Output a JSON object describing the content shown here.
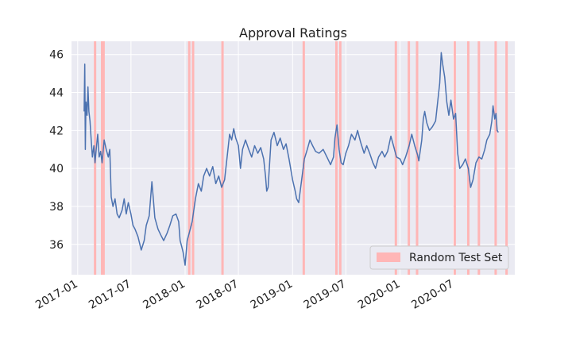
{
  "chart_data": {
    "type": "line",
    "title": "Approval Ratings",
    "xlabel": "",
    "ylabel": "",
    "x_type": "date",
    "xlim": [
      "2016-12-11",
      "2021-01-25"
    ],
    "ylim": [
      34.4,
      46.7
    ],
    "grid": true,
    "x_ticks": [
      "2017-01",
      "2017-07",
      "2018-01",
      "2018-07",
      "2019-01",
      "2019-07",
      "2020-01",
      "2020-07"
    ],
    "x_tick_dates": [
      "2017-01-01",
      "2017-07-01",
      "2018-01-01",
      "2018-07-01",
      "2019-01-01",
      "2019-07-01",
      "2020-01-01",
      "2020-07-01"
    ],
    "y_ticks": [
      36,
      38,
      40,
      42,
      44,
      46
    ],
    "y_tick_labels": [
      "36",
      "38",
      "40",
      "42",
      "44",
      "46"
    ],
    "series": [
      {
        "color": "#4c72b0",
        "points": [
          [
            "2017-01-23",
            43.0
          ],
          [
            "2017-01-25",
            45.5
          ],
          [
            "2017-01-27",
            41.0
          ],
          [
            "2017-01-29",
            43.5
          ],
          [
            "2017-02-02",
            42.8
          ],
          [
            "2017-02-05",
            44.3
          ],
          [
            "2017-02-08",
            43.0
          ],
          [
            "2017-02-12",
            42.5
          ],
          [
            "2017-02-16",
            41.5
          ],
          [
            "2017-02-20",
            40.6
          ],
          [
            "2017-02-25",
            41.2
          ],
          [
            "2017-03-01",
            40.3
          ],
          [
            "2017-03-05",
            41.0
          ],
          [
            "2017-03-10",
            41.8
          ],
          [
            "2017-03-15",
            40.6
          ],
          [
            "2017-03-20",
            40.9
          ],
          [
            "2017-03-25",
            40.3
          ],
          [
            "2017-04-01",
            41.5
          ],
          [
            "2017-04-08",
            41.0
          ],
          [
            "2017-04-15",
            40.6
          ],
          [
            "2017-04-20",
            41.0
          ],
          [
            "2017-04-25",
            38.5
          ],
          [
            "2017-05-01",
            38.0
          ],
          [
            "2017-05-08",
            38.4
          ],
          [
            "2017-05-15",
            37.6
          ],
          [
            "2017-05-22",
            37.4
          ],
          [
            "2017-06-01",
            37.8
          ],
          [
            "2017-06-08",
            38.4
          ],
          [
            "2017-06-15",
            37.6
          ],
          [
            "2017-06-22",
            38.2
          ],
          [
            "2017-07-01",
            37.6
          ],
          [
            "2017-07-08",
            37.0
          ],
          [
            "2017-07-15",
            36.8
          ],
          [
            "2017-07-25",
            36.4
          ],
          [
            "2017-08-05",
            35.7
          ],
          [
            "2017-08-15",
            36.2
          ],
          [
            "2017-08-22",
            37.0
          ],
          [
            "2017-09-01",
            37.5
          ],
          [
            "2017-09-10",
            39.3
          ],
          [
            "2017-09-15",
            38.4
          ],
          [
            "2017-09-20",
            37.4
          ],
          [
            "2017-10-01",
            36.8
          ],
          [
            "2017-10-10",
            36.5
          ],
          [
            "2017-10-20",
            36.2
          ],
          [
            "2017-11-01",
            36.6
          ],
          [
            "2017-11-10",
            37.0
          ],
          [
            "2017-11-20",
            37.5
          ],
          [
            "2017-12-01",
            37.6
          ],
          [
            "2017-12-10",
            37.2
          ],
          [
            "2017-12-15",
            36.2
          ],
          [
            "2017-12-20",
            35.9
          ],
          [
            "2017-12-25",
            35.6
          ],
          [
            "2018-01-01",
            34.9
          ],
          [
            "2018-01-08",
            36.2
          ],
          [
            "2018-01-15",
            36.6
          ],
          [
            "2018-01-25",
            37.2
          ],
          [
            "2018-02-05",
            38.4
          ],
          [
            "2018-02-15",
            39.2
          ],
          [
            "2018-02-25",
            38.8
          ],
          [
            "2018-03-05",
            39.6
          ],
          [
            "2018-03-15",
            40.0
          ],
          [
            "2018-03-25",
            39.6
          ],
          [
            "2018-04-05",
            40.1
          ],
          [
            "2018-04-15",
            39.2
          ],
          [
            "2018-04-25",
            39.6
          ],
          [
            "2018-05-05",
            39.0
          ],
          [
            "2018-05-15",
            39.4
          ],
          [
            "2018-05-25",
            40.8
          ],
          [
            "2018-06-01",
            41.8
          ],
          [
            "2018-06-08",
            41.5
          ],
          [
            "2018-06-15",
            42.1
          ],
          [
            "2018-06-22",
            41.6
          ],
          [
            "2018-07-01",
            41.2
          ],
          [
            "2018-07-08",
            40.0
          ],
          [
            "2018-07-15",
            41.0
          ],
          [
            "2018-07-25",
            41.5
          ],
          [
            "2018-08-05",
            41.0
          ],
          [
            "2018-08-15",
            40.6
          ],
          [
            "2018-08-25",
            41.2
          ],
          [
            "2018-09-05",
            40.8
          ],
          [
            "2018-09-15",
            41.1
          ],
          [
            "2018-09-25",
            40.5
          ],
          [
            "2018-10-01",
            39.6
          ],
          [
            "2018-10-05",
            38.8
          ],
          [
            "2018-10-10",
            39.0
          ],
          [
            "2018-10-20",
            41.5
          ],
          [
            "2018-10-30",
            41.9
          ],
          [
            "2018-11-10",
            41.2
          ],
          [
            "2018-11-20",
            41.6
          ],
          [
            "2018-12-01",
            41.0
          ],
          [
            "2018-12-10",
            41.3
          ],
          [
            "2018-12-20",
            40.5
          ],
          [
            "2019-01-01",
            39.4
          ],
          [
            "2019-01-10",
            38.8
          ],
          [
            "2019-01-15",
            38.4
          ],
          [
            "2019-01-22",
            38.2
          ],
          [
            "2019-02-01",
            39.4
          ],
          [
            "2019-02-10",
            40.5
          ],
          [
            "2019-02-20",
            41.0
          ],
          [
            "2019-03-01",
            41.5
          ],
          [
            "2019-03-10",
            41.2
          ],
          [
            "2019-03-20",
            40.9
          ],
          [
            "2019-04-01",
            40.8
          ],
          [
            "2019-04-15",
            41.0
          ],
          [
            "2019-05-01",
            40.5
          ],
          [
            "2019-05-10",
            40.2
          ],
          [
            "2019-05-20",
            40.6
          ],
          [
            "2019-05-25",
            41.6
          ],
          [
            "2019-06-01",
            42.3
          ],
          [
            "2019-06-08",
            41.0
          ],
          [
            "2019-06-15",
            40.3
          ],
          [
            "2019-06-22",
            40.2
          ],
          [
            "2019-07-01",
            40.8
          ],
          [
            "2019-07-10",
            41.2
          ],
          [
            "2019-07-20",
            41.8
          ],
          [
            "2019-08-01",
            41.5
          ],
          [
            "2019-08-10",
            42.0
          ],
          [
            "2019-08-20",
            41.4
          ],
          [
            "2019-09-01",
            40.8
          ],
          [
            "2019-09-10",
            41.2
          ],
          [
            "2019-09-20",
            40.8
          ],
          [
            "2019-10-01",
            40.3
          ],
          [
            "2019-10-10",
            40.0
          ],
          [
            "2019-10-20",
            40.6
          ],
          [
            "2019-11-01",
            40.9
          ],
          [
            "2019-11-10",
            40.6
          ],
          [
            "2019-11-20",
            40.9
          ],
          [
            "2019-12-01",
            41.7
          ],
          [
            "2019-12-10",
            41.2
          ],
          [
            "2019-12-20",
            40.6
          ],
          [
            "2020-01-01",
            40.5
          ],
          [
            "2020-01-10",
            40.2
          ],
          [
            "2020-01-20",
            40.6
          ],
          [
            "2020-02-01",
            41.2
          ],
          [
            "2020-02-10",
            41.8
          ],
          [
            "2020-02-20",
            41.2
          ],
          [
            "2020-03-01",
            40.7
          ],
          [
            "2020-03-05",
            40.4
          ],
          [
            "2020-03-15",
            41.5
          ],
          [
            "2020-03-20",
            42.6
          ],
          [
            "2020-03-25",
            43.0
          ],
          [
            "2020-04-01",
            42.4
          ],
          [
            "2020-04-10",
            42.0
          ],
          [
            "2020-04-20",
            42.2
          ],
          [
            "2020-05-01",
            42.5
          ],
          [
            "2020-05-08",
            43.5
          ],
          [
            "2020-05-15",
            44.5
          ],
          [
            "2020-05-20",
            46.1
          ],
          [
            "2020-05-25",
            45.5
          ],
          [
            "2020-06-01",
            44.8
          ],
          [
            "2020-06-08",
            43.5
          ],
          [
            "2020-06-15",
            42.8
          ],
          [
            "2020-06-22",
            43.6
          ],
          [
            "2020-07-01",
            42.6
          ],
          [
            "2020-07-08",
            42.9
          ],
          [
            "2020-07-15",
            40.8
          ],
          [
            "2020-07-22",
            40.0
          ],
          [
            "2020-08-01",
            40.2
          ],
          [
            "2020-08-10",
            40.5
          ],
          [
            "2020-08-20",
            40.0
          ],
          [
            "2020-08-28",
            39.0
          ],
          [
            "2020-09-05",
            39.4
          ],
          [
            "2020-09-15",
            40.3
          ],
          [
            "2020-09-25",
            40.6
          ],
          [
            "2020-10-05",
            40.5
          ],
          [
            "2020-10-15",
            41.0
          ],
          [
            "2020-10-22",
            41.5
          ],
          [
            "2020-11-01",
            41.8
          ],
          [
            "2020-11-08",
            42.5
          ],
          [
            "2020-11-12",
            43.3
          ],
          [
            "2020-11-18",
            42.6
          ],
          [
            "2020-11-22",
            42.9
          ],
          [
            "2020-11-26",
            42.0
          ],
          [
            "2020-11-30",
            41.9
          ]
        ]
      }
    ],
    "legend": {
      "placement": "lower-right",
      "entries": [
        "Random Test Set"
      ]
    },
    "test_set_color": "#ffb6b6",
    "test_set_dates": [
      "2017-03-01",
      "2017-03-25",
      "2017-03-30",
      "2018-01-15",
      "2018-01-28",
      "2018-05-08",
      "2019-02-08",
      "2019-05-30",
      "2019-06-12",
      "2019-12-18",
      "2020-01-31",
      "2020-02-28",
      "2020-07-05",
      "2020-08-20",
      "2020-09-25",
      "2020-11-21",
      "2020-12-28"
    ]
  }
}
